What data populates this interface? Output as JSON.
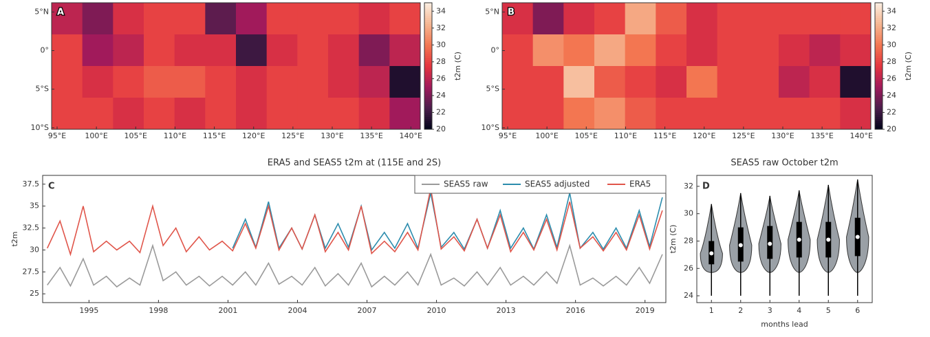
{
  "chart_data": [
    {
      "type": "heatmap",
      "panel_label": "A",
      "colormap": "rocket",
      "xlim": [
        94.3,
        141.2
      ],
      "ylim": [
        -10.2,
        6.2
      ],
      "xticks": [
        {
          "value": 95,
          "label": "95°E"
        },
        {
          "value": 100,
          "label": "100°E"
        },
        {
          "value": 105,
          "label": "105°E"
        },
        {
          "value": 110,
          "label": "110°E"
        },
        {
          "value": 115,
          "label": "115°E"
        },
        {
          "value": 120,
          "label": "120°E"
        },
        {
          "value": 125,
          "label": "125°E"
        },
        {
          "value": 130,
          "label": "130°E"
        },
        {
          "value": 135,
          "label": "135°E"
        },
        {
          "value": 140,
          "label": "140°E"
        }
      ],
      "yticks": [
        {
          "value": 5,
          "label": "5°N"
        },
        {
          "value": 0,
          "label": "0°"
        },
        {
          "value": -5,
          "label": "5°S"
        },
        {
          "value": -10,
          "label": "10°S"
        }
      ],
      "values": [
        [
          26,
          24,
          27,
          28,
          28,
          23,
          25,
          28,
          28,
          28,
          27,
          28
        ],
        [
          28,
          25,
          26,
          28,
          27,
          27,
          22,
          27,
          28,
          27,
          24,
          26
        ],
        [
          28,
          27,
          28,
          29,
          29,
          28,
          27,
          28,
          28,
          27,
          26,
          21
        ],
        [
          28,
          28,
          27,
          28,
          27,
          28,
          27,
          28,
          28,
          28,
          27,
          25
        ]
      ],
      "colorbar": {
        "label": "t2m (C)",
        "lim": [
          20,
          35
        ],
        "ticks": [
          20,
          22,
          24,
          26,
          28,
          30,
          32,
          34
        ]
      }
    },
    {
      "type": "heatmap",
      "panel_label": "B",
      "colormap": "rocket",
      "xlim": [
        94.3,
        141.2
      ],
      "ylim": [
        -10.2,
        6.2
      ],
      "xticks": [
        {
          "value": 95,
          "label": "95°E"
        },
        {
          "value": 100,
          "label": "100°E"
        },
        {
          "value": 105,
          "label": "105°E"
        },
        {
          "value": 110,
          "label": "110°E"
        },
        {
          "value": 115,
          "label": "115°E"
        },
        {
          "value": 120,
          "label": "120°E"
        },
        {
          "value": 125,
          "label": "125°E"
        },
        {
          "value": 130,
          "label": "130°E"
        },
        {
          "value": 135,
          "label": "135°E"
        },
        {
          "value": 140,
          "label": "140°E"
        }
      ],
      "yticks": [
        {
          "value": 5,
          "label": "5°N"
        },
        {
          "value": 0,
          "label": "0°"
        },
        {
          "value": -5,
          "label": "5°S"
        },
        {
          "value": -10,
          "label": "10°S"
        }
      ],
      "values": [
        [
          27,
          24,
          27,
          28,
          32,
          29,
          27,
          28,
          28,
          28,
          28,
          28
        ],
        [
          28,
          31,
          30,
          32,
          30,
          28,
          27,
          28,
          28,
          27,
          26,
          27
        ],
        [
          28,
          28,
          33,
          29,
          28,
          27,
          30,
          28,
          28,
          26,
          27,
          21
        ],
        [
          28,
          28,
          30,
          31,
          29,
          28,
          28,
          28,
          28,
          28,
          28,
          27
        ]
      ],
      "colorbar": {
        "label": "t2m (C)",
        "lim": [
          20,
          35
        ],
        "ticks": [
          20,
          22,
          24,
          26,
          28,
          30,
          32,
          34
        ]
      }
    },
    {
      "type": "line",
      "panel_label": "C",
      "title": "ERA5 and SEAS5 t2m at (115E and 2S)",
      "y_label": "t2m",
      "xlim": [
        1993.0,
        2019.9
      ],
      "ylim": [
        24,
        38.5
      ],
      "xticks": [
        1995,
        1998,
        2001,
        2004,
        2007,
        2010,
        2013,
        2016,
        2019
      ],
      "yticks": [
        25,
        27.5,
        30,
        32.5,
        35,
        37.5
      ],
      "legend": "upper right",
      "series": [
        {
          "name": "SEAS5 raw",
          "color": "#9a9a9a",
          "x": [
            1993.2,
            1993.75,
            1994.2,
            1994.75,
            1995.2,
            1995.75,
            1996.2,
            1996.75,
            1997.2,
            1997.75,
            1998.2,
            1998.75,
            1999.2,
            1999.75,
            2000.2,
            2000.75,
            2001.2,
            2001.75,
            2002.2,
            2002.75,
            2003.2,
            2003.75,
            2004.2,
            2004.75,
            2005.2,
            2005.75,
            2006.2,
            2006.75,
            2007.2,
            2007.75,
            2008.2,
            2008.75,
            2009.2,
            2009.75,
            2010.2,
            2010.75,
            2011.2,
            2011.75,
            2012.2,
            2012.75,
            2013.2,
            2013.75,
            2014.2,
            2014.75,
            2015.2,
            2015.75,
            2016.2,
            2016.75,
            2017.2,
            2017.75,
            2018.2,
            2018.75,
            2019.2,
            2019.75
          ],
          "values": [
            26,
            28,
            25.9,
            29,
            26,
            27,
            25.8,
            26.8,
            26,
            30.5,
            26.5,
            27.5,
            26,
            27,
            25.9,
            27,
            26,
            27.5,
            26,
            28.5,
            26.1,
            27,
            26,
            28,
            25.9,
            27.3,
            26,
            28.5,
            25.8,
            27,
            26,
            27.5,
            26,
            29.5,
            26,
            26.8,
            25.9,
            27.5,
            26,
            28,
            26,
            27,
            26,
            27.5,
            26.2,
            30.5,
            26,
            26.8,
            25.9,
            27,
            26,
            28,
            26.2,
            29.5
          ]
        },
        {
          "name": "SEAS5 adjusted",
          "color": "#2b8cad",
          "x": [
            2001.2,
            2001.75,
            2002.2,
            2002.75,
            2003.2,
            2003.75,
            2004.2,
            2004.75,
            2005.2,
            2005.75,
            2006.2,
            2006.75,
            2007.2,
            2007.75,
            2008.2,
            2008.75,
            2009.2,
            2009.75,
            2010.2,
            2010.75,
            2011.2,
            2011.75,
            2012.2,
            2012.75,
            2013.2,
            2013.75,
            2014.2,
            2014.75,
            2015.2,
            2015.75,
            2016.2,
            2016.75,
            2017.2,
            2017.75,
            2018.2,
            2018.75,
            2019.2,
            2019.75
          ],
          "values": [
            30.2,
            33.5,
            30.3,
            35.5,
            30.2,
            32.5,
            30.1,
            34,
            30.2,
            33,
            30.3,
            35,
            30,
            32,
            30.2,
            33,
            30.2,
            36.5,
            30.3,
            32,
            30.1,
            33.5,
            30.2,
            34.5,
            30.2,
            32.5,
            30.1,
            34,
            30.3,
            36.5,
            30.2,
            32,
            30.1,
            32.5,
            30.2,
            34.5,
            30.4,
            36
          ]
        },
        {
          "name": "ERA5",
          "color": "#e0554a",
          "x": [
            1993.2,
            1993.75,
            1994.2,
            1994.75,
            1995.2,
            1995.75,
            1996.2,
            1996.75,
            1997.2,
            1997.75,
            1998.2,
            1998.75,
            1999.2,
            1999.75,
            2000.2,
            2000.75,
            2001.2,
            2001.75,
            2002.2,
            2002.75,
            2003.2,
            2003.75,
            2004.2,
            2004.75,
            2005.2,
            2005.75,
            2006.2,
            2006.75,
            2007.2,
            2007.75,
            2008.2,
            2008.75,
            2009.2,
            2009.75,
            2010.2,
            2010.75,
            2011.2,
            2011.75,
            2012.2,
            2012.75,
            2013.2,
            2013.75,
            2014.2,
            2014.75,
            2015.2,
            2015.75,
            2016.2,
            2016.75,
            2017.2,
            2017.75,
            2018.2,
            2018.75,
            2019.2,
            2019.75
          ],
          "values": [
            30.2,
            33.3,
            29.5,
            35,
            29.8,
            31,
            30,
            31,
            29.7,
            35,
            30.5,
            32.5,
            29.8,
            31.5,
            30,
            31,
            29.9,
            33,
            30.2,
            35,
            30,
            32.5,
            30.1,
            34,
            29.8,
            32,
            30,
            35,
            29.6,
            31,
            29.8,
            32,
            30,
            37,
            30.1,
            31.5,
            29.9,
            33.5,
            30.2,
            34,
            29.8,
            32,
            30,
            33.5,
            30,
            35.5,
            30.2,
            31.5,
            29.9,
            32,
            30,
            34,
            30.1,
            34.5
          ]
        }
      ]
    },
    {
      "type": "violin",
      "panel_label": "D",
      "title": "SEAS5 raw October t2m",
      "x_label": "months lead",
      "y_label": "t2m (C)",
      "categories": [
        1,
        2,
        3,
        4,
        5,
        6
      ],
      "ylim": [
        23.5,
        32.8
      ],
      "yticks": [
        24,
        26,
        28,
        30,
        32
      ],
      "color": "#9aa0a6",
      "min": [
        24,
        24,
        24,
        24,
        24,
        24
      ],
      "q1": [
        26.3,
        26.5,
        26.7,
        26.8,
        26.8,
        26.9
      ],
      "median": [
        27.1,
        27.7,
        27.8,
        28.1,
        28.1,
        28.3
      ],
      "q3": [
        28,
        29,
        29.1,
        29.4,
        29.4,
        29.7
      ],
      "max": [
        30.7,
        31.5,
        31.3,
        31.7,
        32.1,
        32.5
      ]
    }
  ]
}
